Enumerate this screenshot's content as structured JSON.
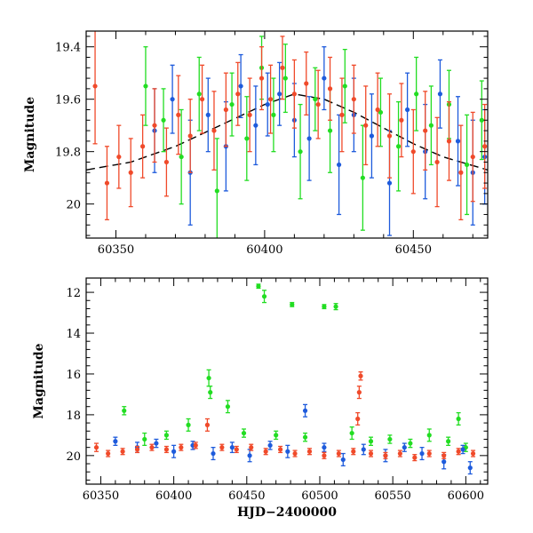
{
  "chart_data": [
    {
      "type": "scatter",
      "panel": "top",
      "title": "",
      "xlabel": "",
      "ylabel": "Magnitude",
      "xlim": [
        60340,
        60475
      ],
      "ylim": [
        20.13,
        19.34
      ],
      "y_inverted": true,
      "xticks": [
        60350,
        60400,
        60450
      ],
      "yticks": [
        19.4,
        19.6,
        19.8,
        20
      ],
      "tick_labels_x": [
        "60350",
        "60400",
        "60450"
      ],
      "tick_labels_y": [
        "19.4",
        "19.6",
        "19.8",
        "20"
      ],
      "model_curve": {
        "style": "dashed",
        "color": "#000000",
        "x": [
          60340,
          60355,
          60370,
          60385,
          60400,
          60410,
          60420,
          60430,
          60440,
          60450,
          60460,
          60475
        ],
        "y": [
          19.87,
          19.84,
          19.78,
          19.7,
          19.62,
          19.58,
          19.6,
          19.65,
          19.71,
          19.77,
          19.82,
          19.87
        ]
      },
      "series": [
        {
          "color": "#22dd22",
          "x": [
            60360,
            60366,
            60372,
            60378,
            60384,
            60389,
            60394,
            60399,
            60403,
            60407,
            60412,
            60417,
            60422,
            60427,
            60433,
            60439,
            60445,
            60451,
            60456,
            60462,
            60468,
            60473
          ],
          "y": [
            19.55,
            19.68,
            19.82,
            19.58,
            19.95,
            19.62,
            19.75,
            19.48,
            19.66,
            19.52,
            19.8,
            19.6,
            19.72,
            19.55,
            19.9,
            19.65,
            19.78,
            19.58,
            19.7,
            19.62,
            19.85,
            19.68
          ],
          "err": [
            0.15,
            0.12,
            0.18,
            0.14,
            0.2,
            0.12,
            0.16,
            0.12,
            0.14,
            0.13,
            0.18,
            0.12,
            0.16,
            0.14,
            0.2,
            0.13,
            0.17,
            0.14,
            0.15,
            0.13,
            0.19,
            0.15
          ]
        },
        {
          "color": "#1e5bdc",
          "x": [
            60363,
            60369,
            60375,
            60381,
            60387,
            60392,
            60397,
            60401,
            60405,
            60410,
            60415,
            60420,
            60425,
            60430,
            60436,
            60442,
            60448,
            60454,
            60459,
            60465,
            60470,
            60474
          ],
          "y": [
            19.72,
            19.6,
            19.88,
            19.66,
            19.78,
            19.55,
            19.7,
            19.62,
            19.58,
            19.68,
            19.75,
            19.52,
            19.85,
            19.66,
            19.74,
            19.92,
            19.64,
            19.8,
            19.58,
            19.76,
            19.88,
            19.82
          ],
          "err": [
            0.16,
            0.13,
            0.2,
            0.14,
            0.17,
            0.12,
            0.15,
            0.12,
            0.12,
            0.14,
            0.16,
            0.12,
            0.19,
            0.14,
            0.16,
            0.2,
            0.14,
            0.18,
            0.13,
            0.17,
            0.2,
            0.18
          ]
        },
        {
          "color": "#f04a2a",
          "x": [
            60343,
            60347,
            60351,
            60355,
            60359,
            60363,
            60367,
            60371,
            60375,
            60379,
            60383,
            60387,
            60391,
            60395,
            60399,
            60402,
            60406,
            60410,
            60414,
            60418,
            60422,
            60426,
            60430,
            60434,
            60438,
            60442,
            60446,
            60450,
            60454,
            60458,
            60462,
            60466,
            60470,
            60474
          ],
          "y": [
            19.55,
            19.92,
            19.82,
            19.88,
            19.78,
            19.7,
            19.84,
            19.66,
            19.74,
            19.6,
            19.72,
            19.64,
            19.58,
            19.66,
            19.52,
            19.6,
            19.48,
            19.58,
            19.54,
            19.62,
            19.56,
            19.66,
            19.6,
            19.7,
            19.64,
            19.74,
            19.68,
            19.8,
            19.72,
            19.84,
            19.76,
            19.88,
            19.82,
            19.78
          ],
          "err": [
            0.22,
            0.14,
            0.12,
            0.13,
            0.12,
            0.14,
            0.13,
            0.15,
            0.14,
            0.13,
            0.15,
            0.14,
            0.12,
            0.14,
            0.12,
            0.13,
            0.12,
            0.13,
            0.12,
            0.13,
            0.12,
            0.14,
            0.13,
            0.15,
            0.14,
            0.16,
            0.14,
            0.16,
            0.15,
            0.17,
            0.15,
            0.18,
            0.17,
            0.16
          ]
        }
      ]
    },
    {
      "type": "scatter",
      "panel": "bottom",
      "title": "",
      "xlabel": "HJD−2400000",
      "ylabel": "Magnitude",
      "xlim": [
        60340,
        60615
      ],
      "ylim": [
        21.4,
        11.3
      ],
      "y_inverted": true,
      "xticks": [
        60350,
        60400,
        60450,
        60500,
        60550,
        60600
      ],
      "yticks": [
        12,
        14,
        16,
        18,
        20
      ],
      "tick_labels_x": [
        "60350",
        "60400",
        "60450",
        "60500",
        "60550",
        "60600"
      ],
      "tick_labels_y": [
        "12",
        "14",
        "16",
        "18",
        "20"
      ],
      "series": [
        {
          "color": "#22dd22",
          "x": [
            60366,
            60380,
            60395,
            60410,
            60424,
            60425,
            60437,
            60448,
            60458,
            60462,
            60470,
            60481,
            60490,
            60503,
            60511,
            60522,
            60535,
            60548,
            60562,
            60575,
            60588,
            60595,
            60600
          ],
          "y": [
            17.8,
            19.2,
            19.0,
            18.5,
            16.2,
            16.9,
            17.6,
            18.9,
            11.7,
            12.2,
            19.0,
            12.6,
            19.1,
            12.7,
            12.7,
            18.9,
            19.3,
            19.2,
            19.4,
            19.0,
            19.3,
            18.2,
            19.6
          ],
          "err": [
            0.2,
            0.3,
            0.2,
            0.3,
            0.4,
            0.3,
            0.3,
            0.2,
            0.1,
            0.3,
            0.2,
            0.1,
            0.2,
            0.1,
            0.15,
            0.3,
            0.2,
            0.2,
            0.2,
            0.3,
            0.2,
            0.3,
            0.2
          ]
        },
        {
          "color": "#1e5bdc",
          "x": [
            60360,
            60375,
            60388,
            60400,
            60413,
            60427,
            60440,
            60452,
            60466,
            60478,
            60490,
            60503,
            60516,
            60530,
            60545,
            60558,
            60570,
            60585,
            60598,
            60603
          ],
          "y": [
            19.3,
            19.6,
            19.4,
            19.8,
            19.5,
            19.9,
            19.6,
            20.0,
            19.5,
            19.8,
            17.8,
            19.6,
            20.2,
            19.7,
            20.0,
            19.6,
            19.9,
            20.3,
            19.7,
            20.6
          ],
          "err": [
            0.2,
            0.25,
            0.2,
            0.3,
            0.2,
            0.3,
            0.25,
            0.3,
            0.2,
            0.3,
            0.3,
            0.2,
            0.3,
            0.25,
            0.3,
            0.2,
            0.3,
            0.35,
            0.2,
            0.3
          ]
        },
        {
          "color": "#f04a2a",
          "x": [
            60347,
            60355,
            60365,
            60375,
            60385,
            60395,
            60405,
            60415,
            60423,
            60433,
            60443,
            60453,
            60463,
            60473,
            60483,
            60493,
            60503,
            60513,
            60523,
            60526,
            60527,
            60528,
            60535,
            60545,
            60555,
            60565,
            60575,
            60585,
            60595,
            60605
          ],
          "y": [
            19.6,
            19.9,
            19.8,
            19.7,
            19.6,
            19.7,
            19.6,
            19.5,
            18.5,
            19.6,
            19.7,
            19.6,
            19.8,
            19.7,
            19.9,
            19.8,
            20.0,
            19.9,
            19.8,
            18.2,
            16.9,
            16.1,
            19.9,
            20.0,
            19.9,
            20.1,
            19.9,
            20.0,
            19.8,
            19.9
          ],
          "err": [
            0.2,
            0.15,
            0.15,
            0.15,
            0.15,
            0.15,
            0.15,
            0.15,
            0.3,
            0.15,
            0.15,
            0.15,
            0.15,
            0.15,
            0.15,
            0.15,
            0.15,
            0.15,
            0.15,
            0.3,
            0.3,
            0.2,
            0.15,
            0.15,
            0.15,
            0.15,
            0.15,
            0.15,
            0.15,
            0.15
          ]
        }
      ]
    }
  ]
}
